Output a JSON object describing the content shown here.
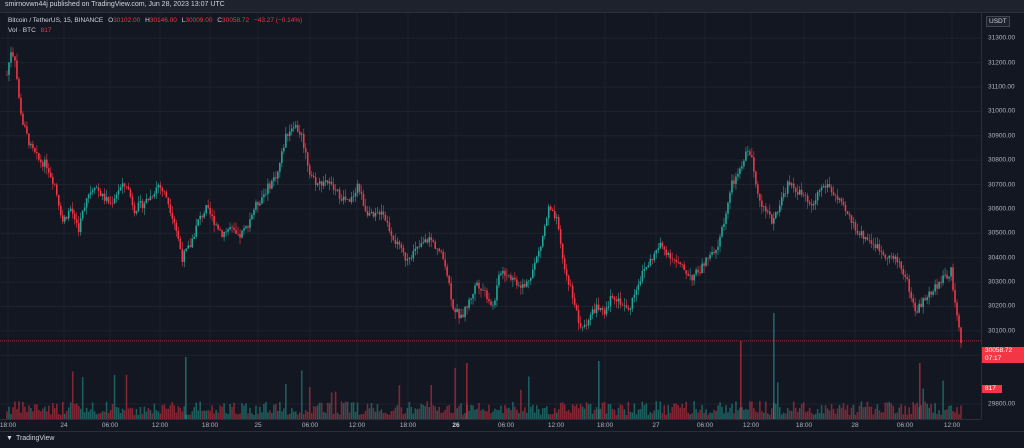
{
  "header": {
    "publisher": "smirnovwn44j published on TradingView.com, Jun 28, 2023 13:07 UTC"
  },
  "legend": {
    "symbol": "Bitcoin / TetherUS, 15, BINANCE",
    "open_label": "O",
    "open": "30102.00",
    "high_label": "H",
    "high": "30146.00",
    "low_label": "L",
    "low": "30009.00",
    "close_label": "C",
    "close": "30058.72",
    "change": "−43.27 (−0.14%)",
    "volume_label": "Vol · BTC",
    "volume": "817"
  },
  "price_axis": {
    "currency": "USDT",
    "ticks": [
      "31300.00",
      "31200.00",
      "31100.00",
      "31000.00",
      "30900.00",
      "30800.00",
      "30700.00",
      "30600.00",
      "30500.00",
      "30400.00",
      "30300.00",
      "30200.00",
      "30100.00",
      "30000.00",
      "29800.00"
    ],
    "last_price": "30058.72",
    "countdown": "07:17",
    "volume_badge": "817"
  },
  "time_axis": {
    "ticks": [
      {
        "label": "18:00",
        "bold": false
      },
      {
        "label": "24",
        "bold": false
      },
      {
        "label": "06:00",
        "bold": false
      },
      {
        "label": "12:00",
        "bold": false
      },
      {
        "label": "18:00",
        "bold": false
      },
      {
        "label": "25",
        "bold": false
      },
      {
        "label": "06:00",
        "bold": false
      },
      {
        "label": "12:00",
        "bold": false
      },
      {
        "label": "18:00",
        "bold": false
      },
      {
        "label": "26",
        "bold": true
      },
      {
        "label": "06:00",
        "bold": false
      },
      {
        "label": "12:00",
        "bold": false
      },
      {
        "label": "18:00",
        "bold": false
      },
      {
        "label": "27",
        "bold": false
      },
      {
        "label": "06:00",
        "bold": false
      },
      {
        "label": "12:00",
        "bold": false
      },
      {
        "label": "18:00",
        "bold": false
      },
      {
        "label": "28",
        "bold": false
      },
      {
        "label": "06:00",
        "bold": false
      },
      {
        "label": "12:00",
        "bold": false
      }
    ]
  },
  "footer": {
    "brand": "TradingView"
  },
  "colors": {
    "up": "#26a69a",
    "down": "#f23645",
    "background": "#131722"
  },
  "chart_data": {
    "type": "candlestick",
    "symbol": "BTCUSDT",
    "interval": "15",
    "ylim": [
      29800,
      31350
    ],
    "x_ticks": [
      "18:00",
      "24",
      "06:00",
      "12:00",
      "18:00",
      "25",
      "06:00",
      "12:00",
      "18:00",
      "26",
      "06:00",
      "12:00",
      "18:00",
      "27",
      "06:00",
      "12:00",
      "18:00",
      "28",
      "06:00",
      "12:00"
    ],
    "y_ticks": [
      29800,
      30000,
      30100,
      30200,
      30300,
      30400,
      30500,
      30600,
      30700,
      30800,
      30900,
      31000,
      31100,
      31200,
      31300
    ],
    "price_path": [
      [
        0,
        31150
      ],
      [
        2,
        31250
      ],
      [
        4,
        31220
      ],
      [
        6,
        31050
      ],
      [
        8,
        30950
      ],
      [
        12,
        30850
      ],
      [
        16,
        30800
      ],
      [
        20,
        30780
      ],
      [
        24,
        30700
      ],
      [
        28,
        30550
      ],
      [
        32,
        30600
      ],
      [
        36,
        30520
      ],
      [
        40,
        30650
      ],
      [
        44,
        30700
      ],
      [
        48,
        30650
      ],
      [
        52,
        30620
      ],
      [
        56,
        30680
      ],
      [
        60,
        30700
      ],
      [
        64,
        30600
      ],
      [
        68,
        30620
      ],
      [
        72,
        30650
      ],
      [
        76,
        30700
      ],
      [
        80,
        30650
      ],
      [
        84,
        30550
      ],
      [
        88,
        30400
      ],
      [
        92,
        30450
      ],
      [
        96,
        30550
      ],
      [
        100,
        30600
      ],
      [
        104,
        30550
      ],
      [
        108,
        30500
      ],
      [
        112,
        30520
      ],
      [
        116,
        30480
      ],
      [
        120,
        30520
      ],
      [
        124,
        30600
      ],
      [
        128,
        30650
      ],
      [
        132,
        30700
      ],
      [
        136,
        30750
      ],
      [
        140,
        30900
      ],
      [
        144,
        30950
      ],
      [
        148,
        30900
      ],
      [
        152,
        30750
      ],
      [
        156,
        30700
      ],
      [
        160,
        30720
      ],
      [
        164,
        30680
      ],
      [
        168,
        30650
      ],
      [
        172,
        30620
      ],
      [
        176,
        30700
      ],
      [
        180,
        30600
      ],
      [
        184,
        30560
      ],
      [
        188,
        30600
      ],
      [
        192,
        30520
      ],
      [
        196,
        30450
      ],
      [
        200,
        30400
      ],
      [
        204,
        30420
      ],
      [
        208,
        30450
      ],
      [
        212,
        30480
      ],
      [
        216,
        30440
      ],
      [
        220,
        30380
      ],
      [
        224,
        30200
      ],
      [
        228,
        30150
      ],
      [
        232,
        30220
      ],
      [
        236,
        30300
      ],
      [
        240,
        30260
      ],
      [
        244,
        30200
      ],
      [
        248,
        30350
      ],
      [
        252,
        30330
      ],
      [
        256,
        30300
      ],
      [
        260,
        30280
      ],
      [
        264,
        30350
      ],
      [
        268,
        30450
      ],
      [
        272,
        30600
      ],
      [
        276,
        30550
      ],
      [
        280,
        30350
      ],
      [
        284,
        30250
      ],
      [
        288,
        30100
      ],
      [
        292,
        30150
      ],
      [
        296,
        30200
      ],
      [
        300,
        30160
      ],
      [
        304,
        30250
      ],
      [
        308,
        30220
      ],
      [
        312,
        30180
      ],
      [
        316,
        30280
      ],
      [
        320,
        30350
      ],
      [
        324,
        30400
      ],
      [
        328,
        30450
      ],
      [
        332,
        30420
      ],
      [
        336,
        30380
      ],
      [
        340,
        30350
      ],
      [
        344,
        30320
      ],
      [
        348,
        30350
      ],
      [
        352,
        30400
      ],
      [
        356,
        30420
      ],
      [
        360,
        30550
      ],
      [
        364,
        30700
      ],
      [
        368,
        30750
      ],
      [
        372,
        30850
      ],
      [
        374,
        30800
      ],
      [
        376,
        30700
      ],
      [
        380,
        30600
      ],
      [
        384,
        30550
      ],
      [
        388,
        30620
      ],
      [
        392,
        30700
      ],
      [
        396,
        30680
      ],
      [
        400,
        30650
      ],
      [
        404,
        30600
      ],
      [
        408,
        30680
      ],
      [
        412,
        30700
      ],
      [
        416,
        30650
      ],
      [
        420,
        30600
      ],
      [
        424,
        30550
      ],
      [
        428,
        30500
      ],
      [
        432,
        30480
      ],
      [
        436,
        30450
      ],
      [
        440,
        30420
      ],
      [
        444,
        30400
      ],
      [
        448,
        30380
      ],
      [
        452,
        30300
      ],
      [
        456,
        30180
      ],
      [
        460,
        30220
      ],
      [
        464,
        30260
      ],
      [
        468,
        30300
      ],
      [
        472,
        30320
      ],
      [
        474,
        30350
      ],
      [
        476,
        30200
      ],
      [
        479,
        30058
      ]
    ],
    "last_price": 30058.72,
    "last_volume": 817
  }
}
